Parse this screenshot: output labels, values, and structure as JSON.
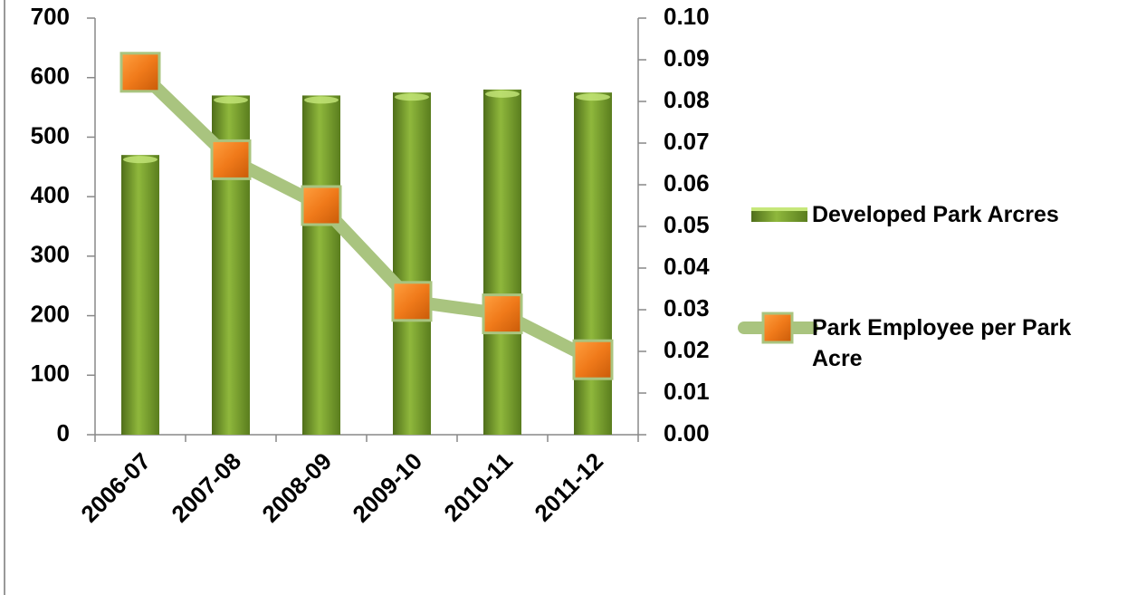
{
  "chart_data": {
    "type": "bar-line",
    "categories": [
      "2006-07",
      "2007-08",
      "2008-09",
      "2009-10",
      "2010-11",
      "2011-12"
    ],
    "series": [
      {
        "name": "Developed Park Arcres",
        "type": "bar",
        "color": "#76a32c",
        "values": [
          470,
          570,
          570,
          575,
          580,
          575
        ]
      },
      {
        "name": "Park Employee per Park Acre",
        "type": "line",
        "axis": "y2",
        "color": "#a9c47f",
        "marker_color": "#f07a1a",
        "values": [
          0.087,
          0.066,
          0.055,
          0.032,
          0.029,
          0.018
        ]
      }
    ],
    "ylim": [
      0,
      700
    ],
    "yticks": [
      0,
      100,
      200,
      300,
      400,
      500,
      600,
      700
    ],
    "y2lim": [
      0,
      0.1
    ],
    "y2ticks": [
      {
        "value": 0,
        "label": "0.00"
      },
      {
        "value": 0.01,
        "label": "0.01"
      },
      {
        "value": 0.02,
        "label": "0.02"
      },
      {
        "value": 0.03,
        "label": "0.03"
      },
      {
        "value": 0.04,
        "label": "0.04"
      },
      {
        "value": 0.05,
        "label": "0.05"
      },
      {
        "value": 0.06,
        "label": "0.06"
      },
      {
        "value": 0.07,
        "label": "0.07"
      },
      {
        "value": 0.08,
        "label": "0.08"
      },
      {
        "value": 0.09,
        "label": "0.09"
      },
      {
        "value": 0.1,
        "label": "0.10"
      }
    ],
    "legend": "right"
  }
}
